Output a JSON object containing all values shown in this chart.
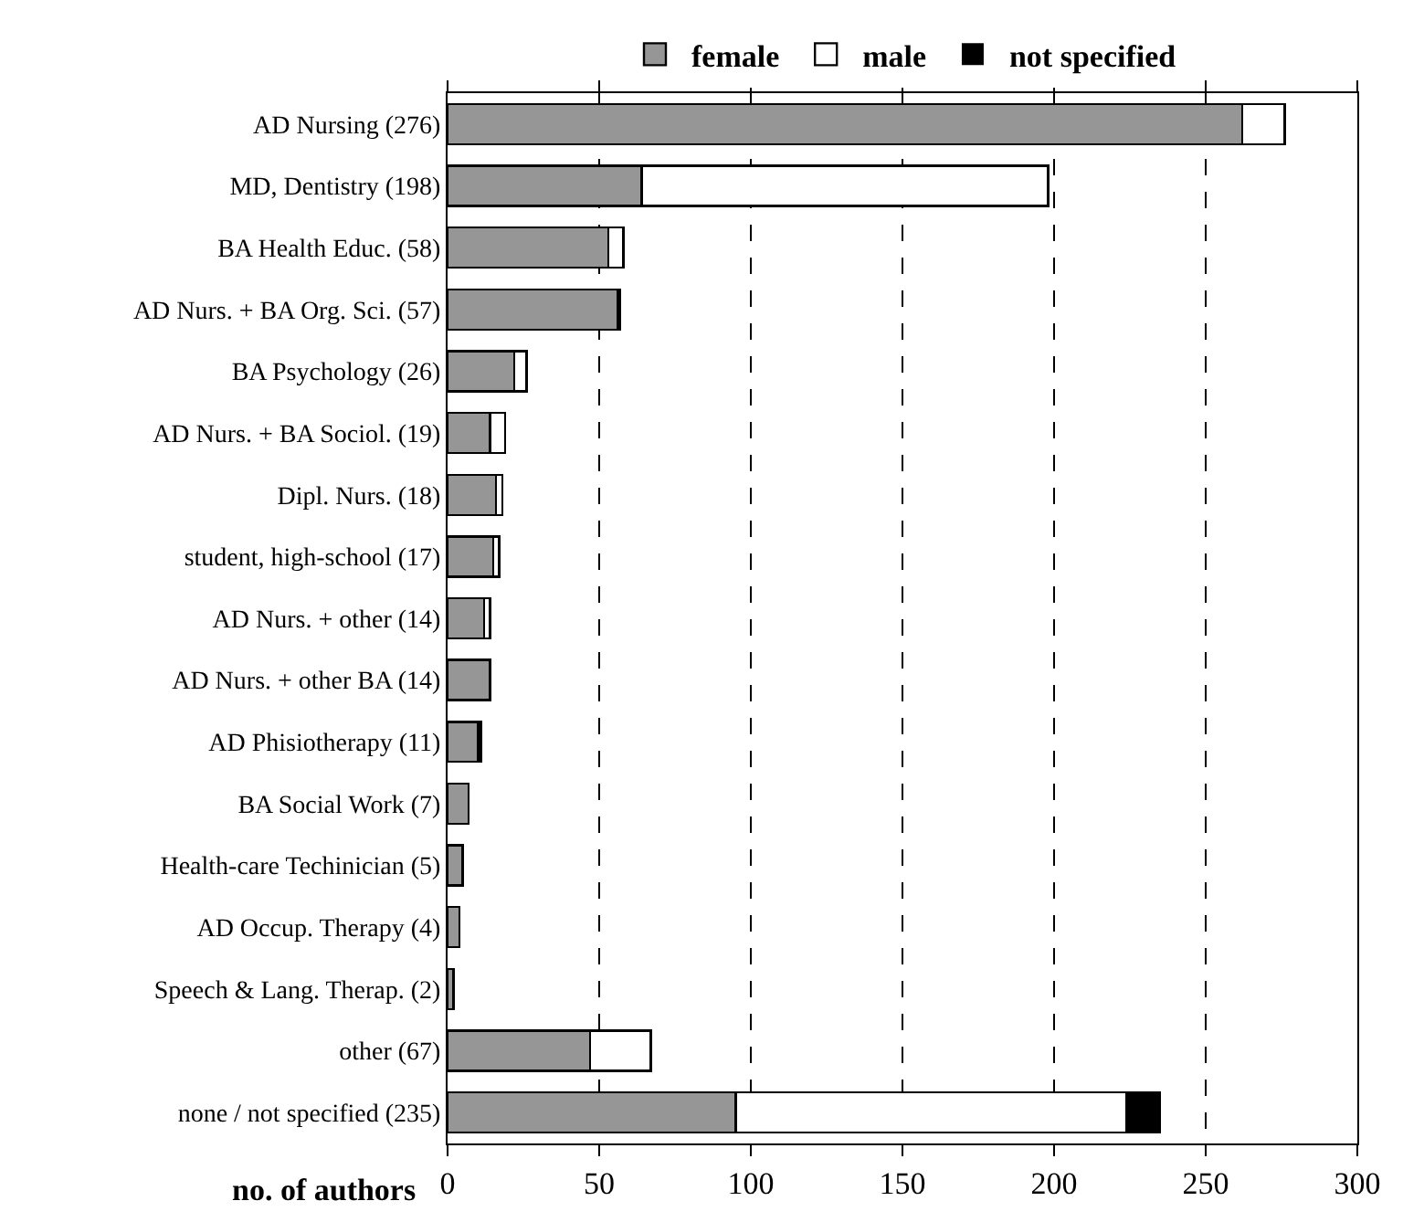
{
  "chart_data": {
    "type": "bar",
    "orientation": "horizontal",
    "stacked": true,
    "xlabel": "no. of authors",
    "categories": [
      "AD Nursing (276)",
      "MD, Dentistry (198)",
      "BA Health Educ. (58)",
      "AD Nurs. + BA Org. Sci. (57)",
      "BA Psychology (26)",
      "AD Nurs. + BA Sociol. (19)",
      "Dipl. Nurs. (18)",
      "student, high-school (17)",
      "AD Nurs. + other (14)",
      "AD Nurs. + other BA (14)",
      "AD Phisiotherapy (11)",
      "BA Social Work (7)",
      "Health-care Techinician (5)",
      "AD Occup. Therapy (4)",
      "Speech & Lang. Therap. (2)",
      "other (67)",
      "none / not specified (235)"
    ],
    "series": [
      {
        "name": "female",
        "color": "#969696",
        "values": [
          262,
          64,
          53,
          56,
          22,
          14,
          16,
          15,
          12,
          14,
          10,
          7,
          5,
          4,
          2,
          47,
          95
        ]
      },
      {
        "name": "male",
        "color": "#ffffff",
        "values": [
          14,
          134,
          5,
          0,
          4,
          5,
          2,
          2,
          2,
          0,
          0,
          0,
          0,
          0,
          0,
          20,
          129
        ]
      },
      {
        "name": "not specified",
        "color": "#000000",
        "values": [
          0,
          0,
          0,
          1,
          0,
          0,
          0,
          0,
          0,
          0,
          1,
          0,
          0,
          0,
          0,
          0,
          11
        ]
      }
    ],
    "xlim": [
      0,
      300
    ],
    "xticks": [
      0,
      50,
      100,
      150,
      200,
      250,
      300
    ],
    "grid": "x",
    "legend": "top"
  }
}
